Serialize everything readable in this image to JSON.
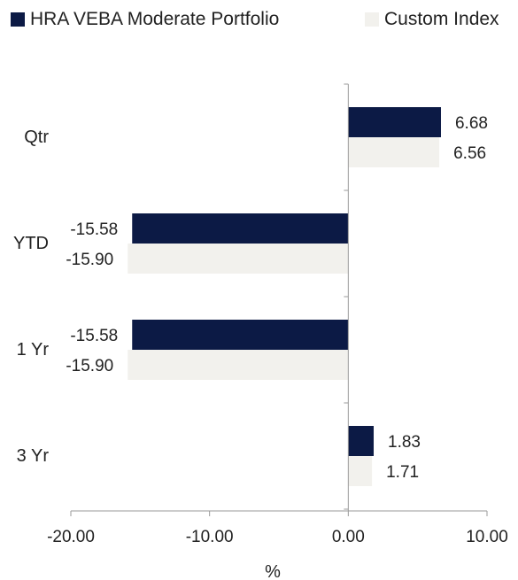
{
  "chart_data": {
    "type": "bar",
    "orientation": "horizontal",
    "categories": [
      "Qtr",
      "YTD",
      "1 Yr",
      "3 Yr"
    ],
    "series": [
      {
        "name": "HRA VEBA Moderate Portfolio",
        "color": "#0c1a45",
        "values": [
          6.68,
          -15.58,
          -15.58,
          1.83
        ],
        "labels": [
          "6.68",
          "-15.58",
          "-15.58",
          "1.83"
        ]
      },
      {
        "name": "Custom Index",
        "color": "#f2f1ed",
        "values": [
          6.56,
          -15.9,
          -15.9,
          1.71
        ],
        "labels": [
          "6.56",
          "-15.90",
          "-15.90",
          "1.71"
        ]
      }
    ],
    "xlabel": "%",
    "ylabel": "",
    "xlim": [
      -20,
      10
    ],
    "xticks": [
      -20,
      -10,
      0,
      10
    ],
    "xtick_labels": [
      "-20.00",
      "-10.00",
      "0.00",
      "10.00"
    ],
    "grid": false,
    "legend_position": "top"
  }
}
